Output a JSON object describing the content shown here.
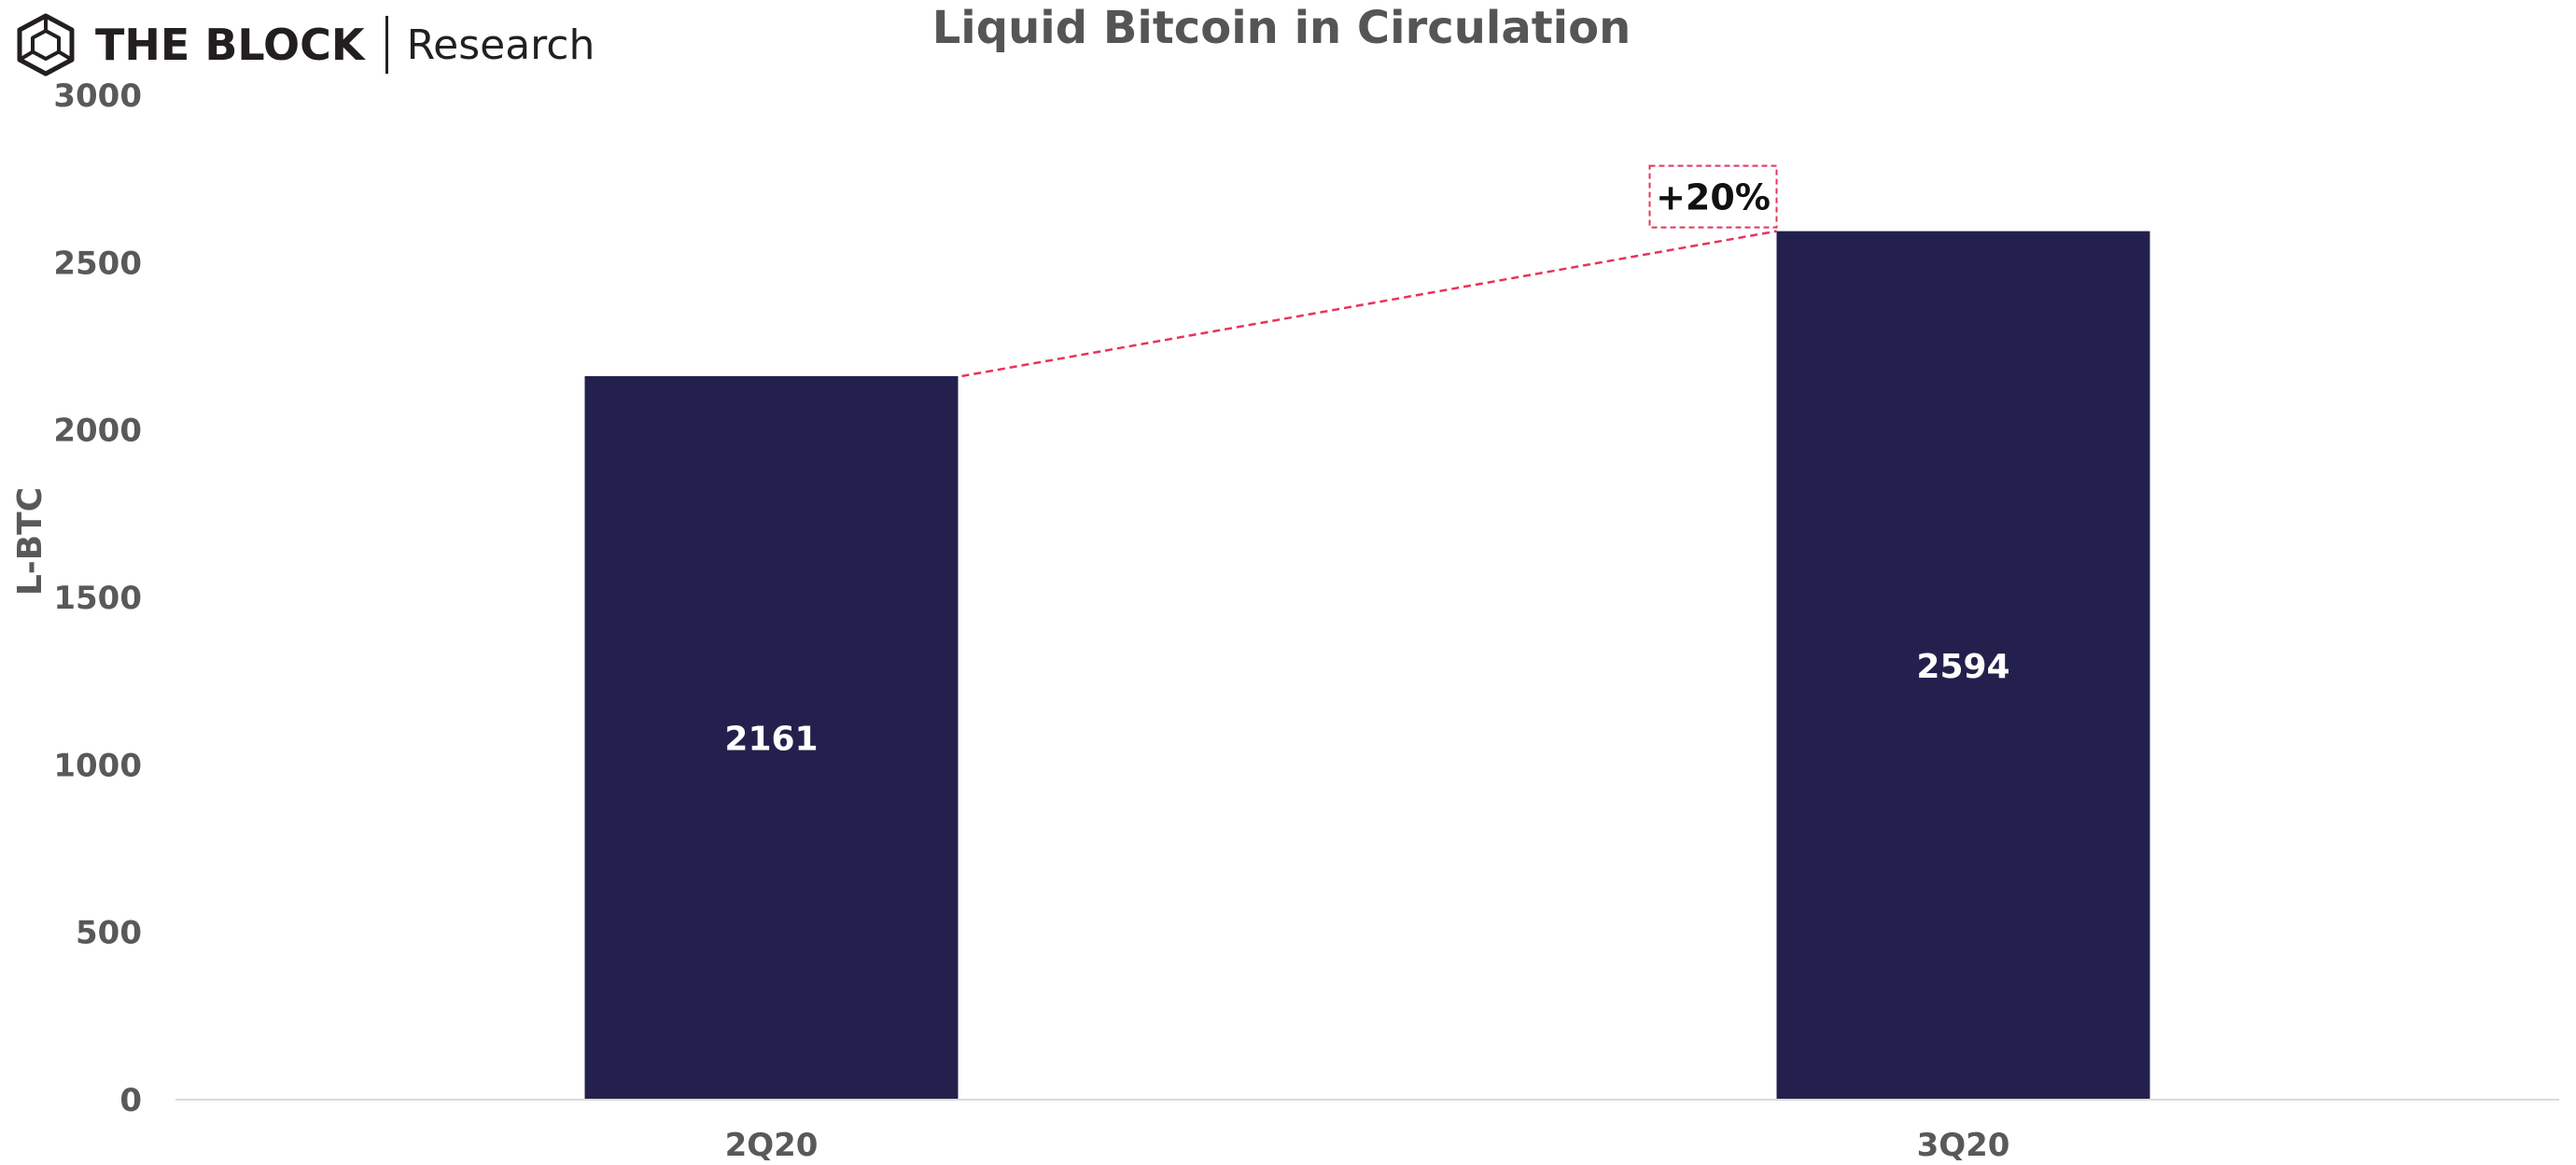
{
  "header": {
    "brand": "THE BLOCK",
    "sub_brand": "Research",
    "logo_icon": "cube-logo-icon"
  },
  "chart_data": {
    "type": "bar",
    "title": "Liquid Bitcoin in Circulation",
    "xlabel": "",
    "ylabel": "L-BTC",
    "categories": [
      "2Q20",
      "3Q20"
    ],
    "values": [
      2161,
      2594
    ],
    "data_labels": [
      "2161",
      "2594"
    ],
    "ylim": [
      0,
      3000
    ],
    "yticks": [
      0,
      500,
      1000,
      1500,
      2000,
      2500,
      3000
    ],
    "ytick_labels": [
      "0",
      "500",
      "1000",
      "1500",
      "2000",
      "2500",
      "3000"
    ],
    "grid": false,
    "legend": "none",
    "annotation": {
      "text": "+20%",
      "from_category": "2Q20",
      "to_category": "3Q20",
      "style": "dashed connector between bar tops"
    },
    "colors": {
      "bar": "#23204d",
      "annotation": "#e8335a",
      "axis": "#d9d9d9",
      "text": "#595959"
    }
  }
}
